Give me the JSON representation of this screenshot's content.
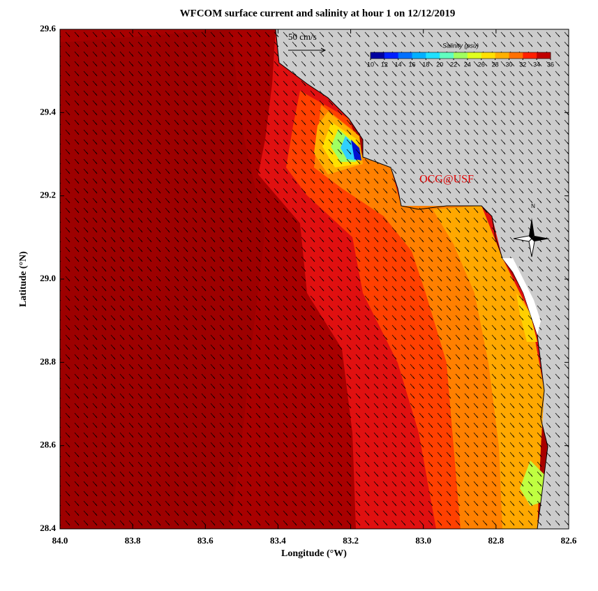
{
  "chart_data": {
    "type": "map",
    "title": "WFCOM surface current and salinity at hour 1 on 12/12/2019",
    "xlabel": "Longitude (°W)",
    "ylabel": "Latitude (°N)",
    "xlim": [
      84.0,
      82.6
    ],
    "ylim": [
      28.4,
      29.6
    ],
    "xticks": [
      {
        "value": 84,
        "label": "84.0"
      },
      83.8,
      83.6,
      83.4,
      83.2,
      {
        "value": 83,
        "label": "83.0"
      },
      82.8,
      82.6
    ],
    "yticks": [
      28.4,
      28.6,
      28.8,
      {
        "value": 29,
        "label": "29.0"
      },
      29.2,
      29.4,
      29.6
    ],
    "colorbar": {
      "title": "Salinity (psu)",
      "lim": [
        10,
        36
      ],
      "ticks": [
        10,
        12,
        14,
        16,
        18,
        20,
        22,
        24,
        26,
        28,
        30,
        32,
        34,
        36
      ],
      "colors": [
        "#0000a0",
        "#0020ff",
        "#0070ff",
        "#00b0ff",
        "#20e0ff",
        "#60ffc0",
        "#a0ff60",
        "#e0ff20",
        "#ffe000",
        "#ffb000",
        "#ff7000",
        "#ff2000",
        "#c00000"
      ]
    },
    "scale_label": "50 cm/s",
    "annotation": "OCG@USF",
    "compass_label": "N"
  }
}
